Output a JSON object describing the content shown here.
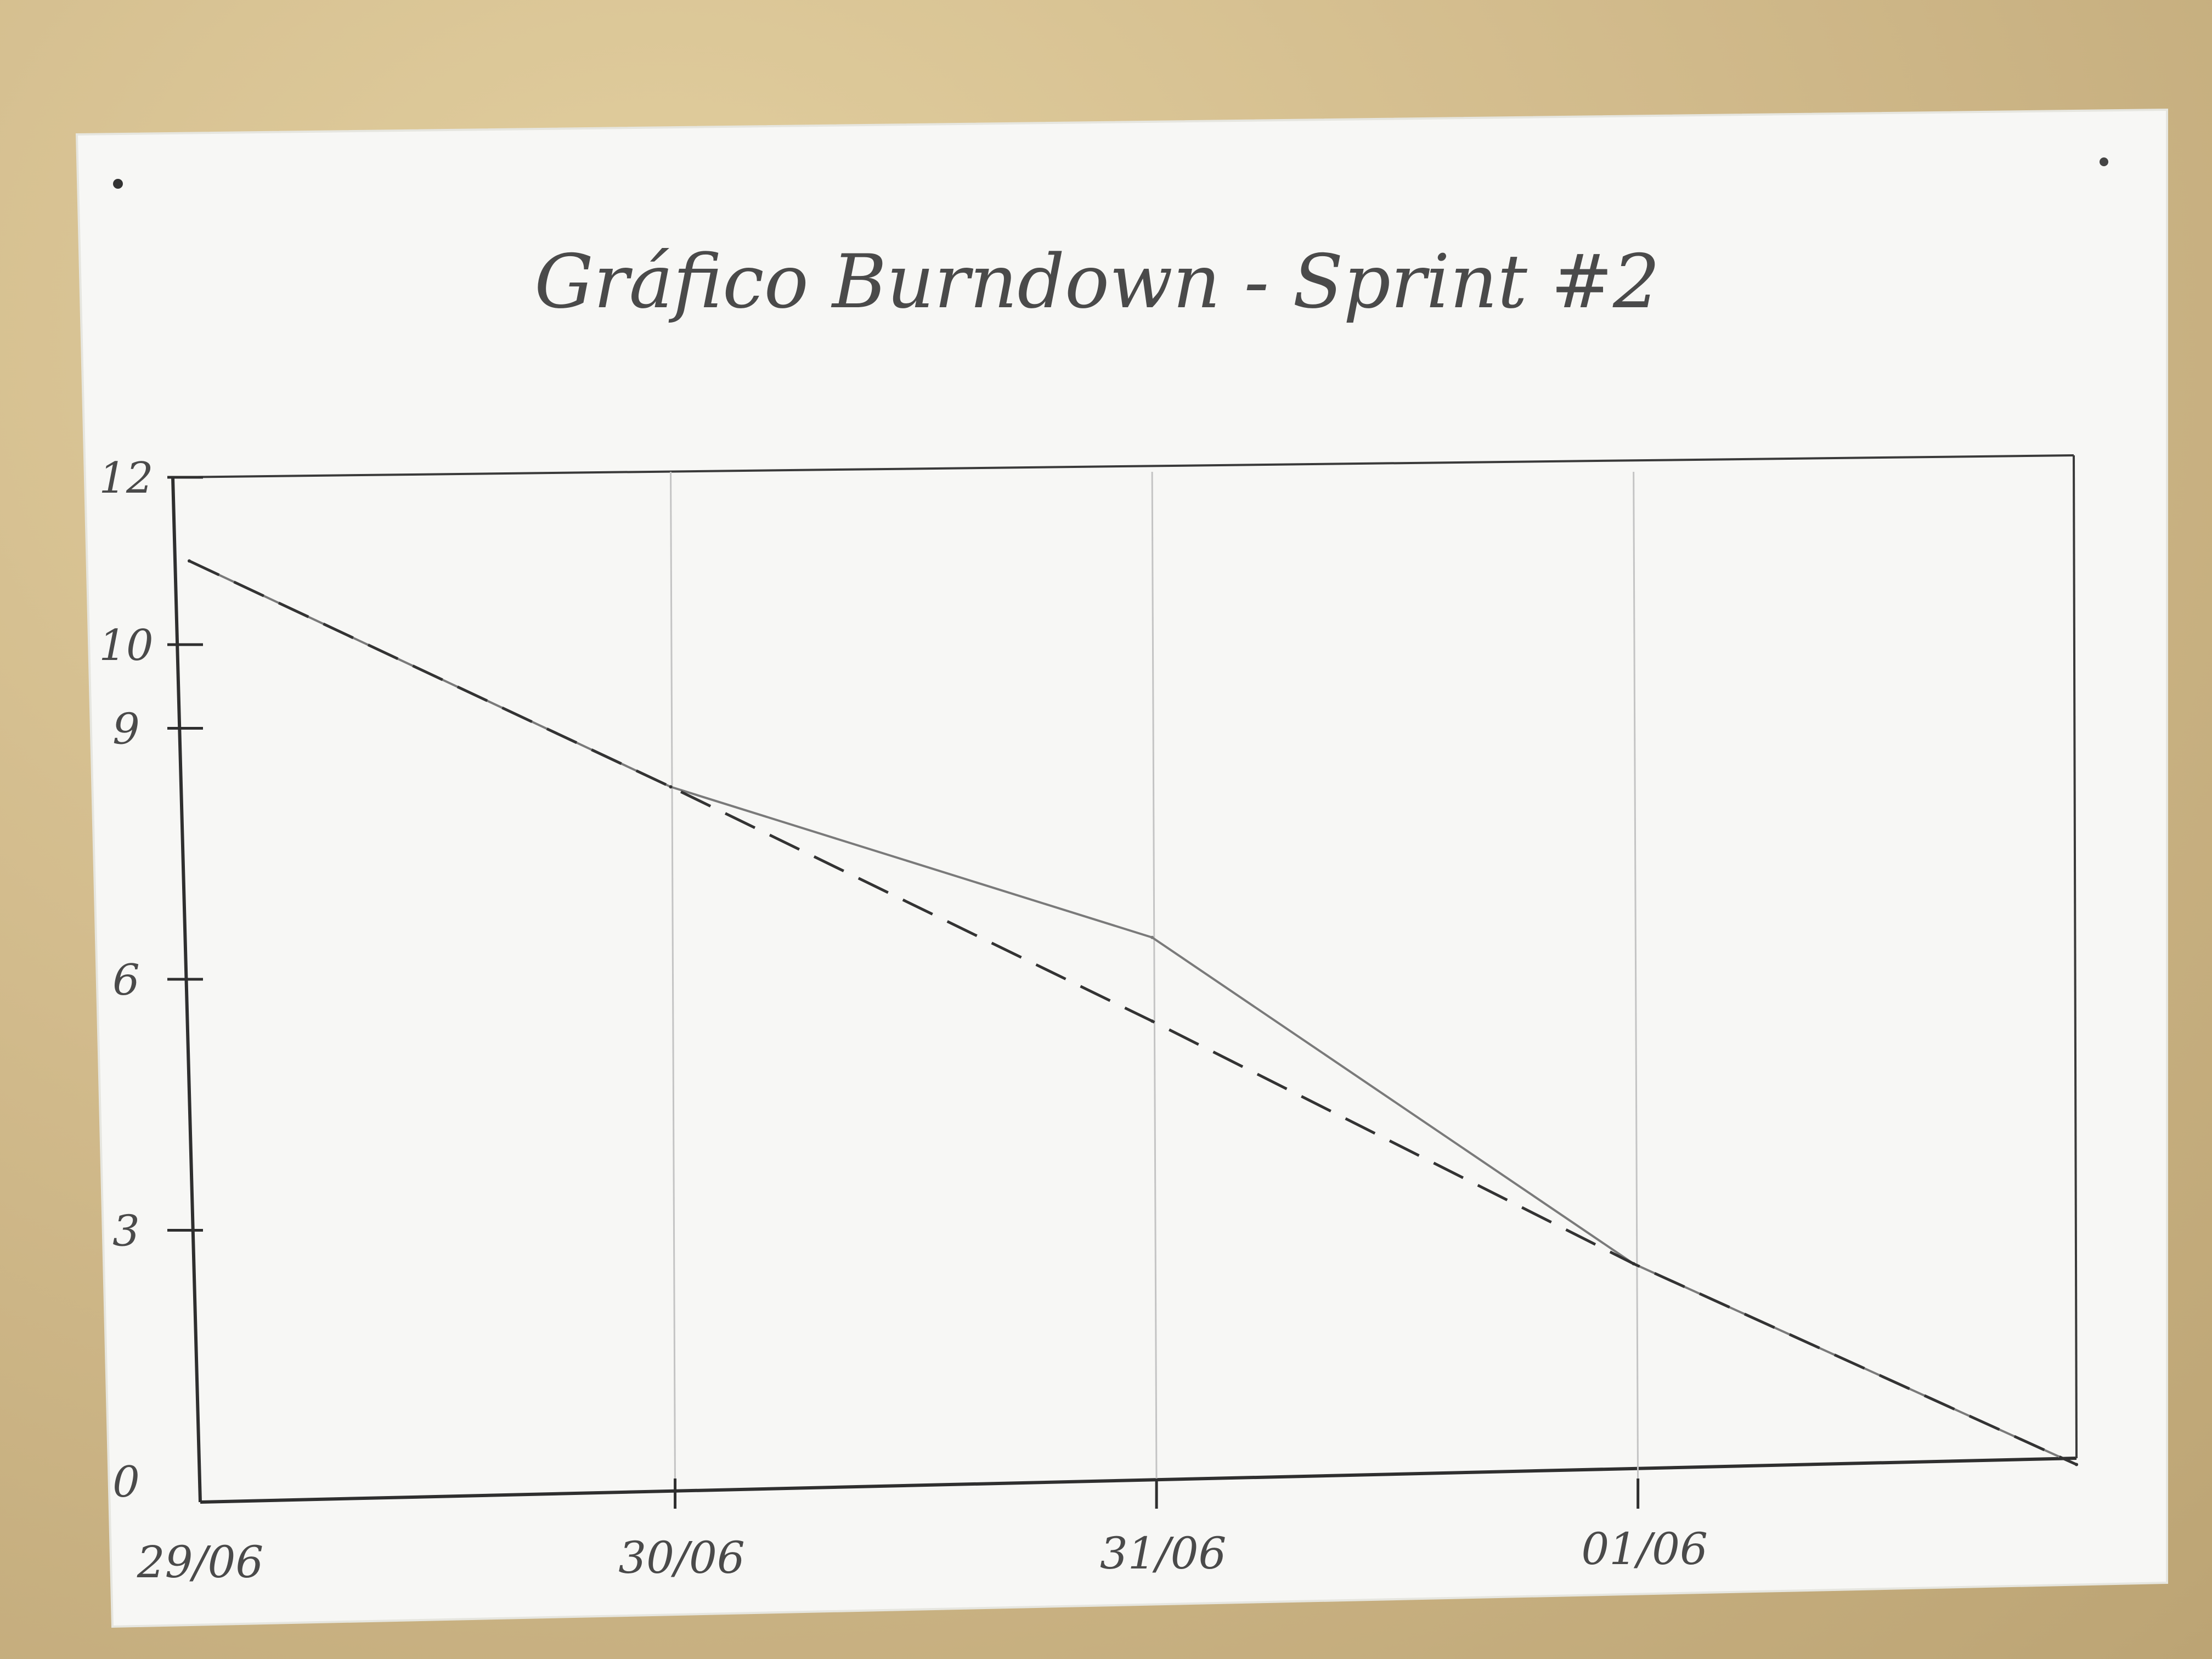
{
  "chart_data": {
    "type": "line",
    "title": "Gráfico Burndown - Sprint #2",
    "xlabel": "",
    "ylabel": "",
    "categories": [
      "29/06",
      "30/06",
      "31/06",
      "01/06"
    ],
    "yticks": [
      "0",
      "3",
      "6",
      "9",
      "10",
      "12"
    ],
    "ylim": [
      0,
      12
    ],
    "grid": "vertical",
    "series": [
      {
        "style": "solid",
        "color": "#7a7a7a",
        "points": [
          {
            "x": 0,
            "y": 11.0
          },
          {
            "x": 1,
            "y": 8.3
          },
          {
            "x": 2,
            "y": 6.5
          },
          {
            "x": 3,
            "y": 2.6
          },
          {
            "x": 3.92,
            "y": 0.2
          }
        ]
      },
      {
        "style": "dashed",
        "color": "#333333",
        "points": [
          {
            "x": 0,
            "y": 11.0
          },
          {
            "x": 1,
            "y": 8.3
          },
          {
            "x": 2,
            "y": 5.5
          },
          {
            "x": 3,
            "y": 2.6
          },
          {
            "x": 3.92,
            "y": 0.2
          }
        ]
      }
    ]
  }
}
